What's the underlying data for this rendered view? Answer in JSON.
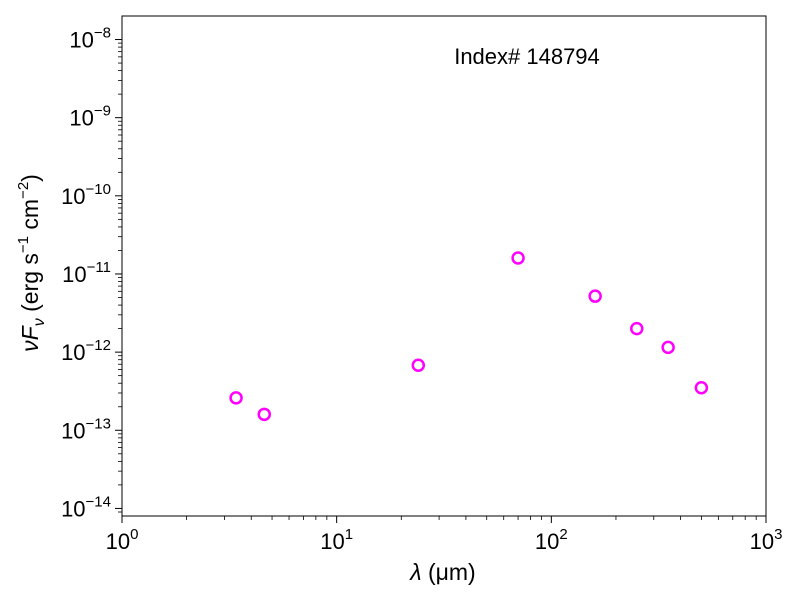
{
  "chart_data": {
    "type": "scatter",
    "annotation": "Index# 148794",
    "xlabel": {
      "symbol": "λ",
      "unit": "(μm)"
    },
    "ylabel": {
      "symbol": "νF",
      "subscript": "ν",
      "text_prefix": "(erg s",
      "exp1": "−1",
      "text_mid": " cm",
      "exp2": "−2",
      "text_suffix": ")"
    },
    "x_scale": "log",
    "y_scale": "log",
    "xlim": [
      1,
      1000
    ],
    "ylim": [
      8e-15,
      2e-08
    ],
    "grid": false,
    "x_ticks": [
      {
        "value": 1,
        "base": "10",
        "exp": "0"
      },
      {
        "value": 10,
        "base": "10",
        "exp": "1"
      },
      {
        "value": 100,
        "base": "10",
        "exp": "2"
      },
      {
        "value": 1000,
        "base": "10",
        "exp": "3"
      }
    ],
    "y_ticks": [
      {
        "value": 1e-14,
        "base": "10",
        "exp": "−14"
      },
      {
        "value": 1e-13,
        "base": "10",
        "exp": "−13"
      },
      {
        "value": 1e-12,
        "base": "10",
        "exp": "−12"
      },
      {
        "value": 1e-11,
        "base": "10",
        "exp": "−11"
      },
      {
        "value": 1e-10,
        "base": "10",
        "exp": "−10"
      },
      {
        "value": 1e-09,
        "base": "10",
        "exp": "−9"
      },
      {
        "value": 1e-08,
        "base": "10",
        "exp": "−8"
      }
    ],
    "marker_color": "#ff00ff",
    "marker_style": "open-circle",
    "points": [
      {
        "x": 3.4,
        "y": 2.6e-13
      },
      {
        "x": 4.6,
        "y": 1.6e-13
      },
      {
        "x": 24,
        "y": 6.8e-13
      },
      {
        "x": 70,
        "y": 1.6e-11
      },
      {
        "x": 160,
        "y": 5.2e-12
      },
      {
        "x": 250,
        "y": 2e-12
      },
      {
        "x": 350,
        "y": 1.15e-12
      },
      {
        "x": 500,
        "y": 3.5e-13
      }
    ]
  }
}
